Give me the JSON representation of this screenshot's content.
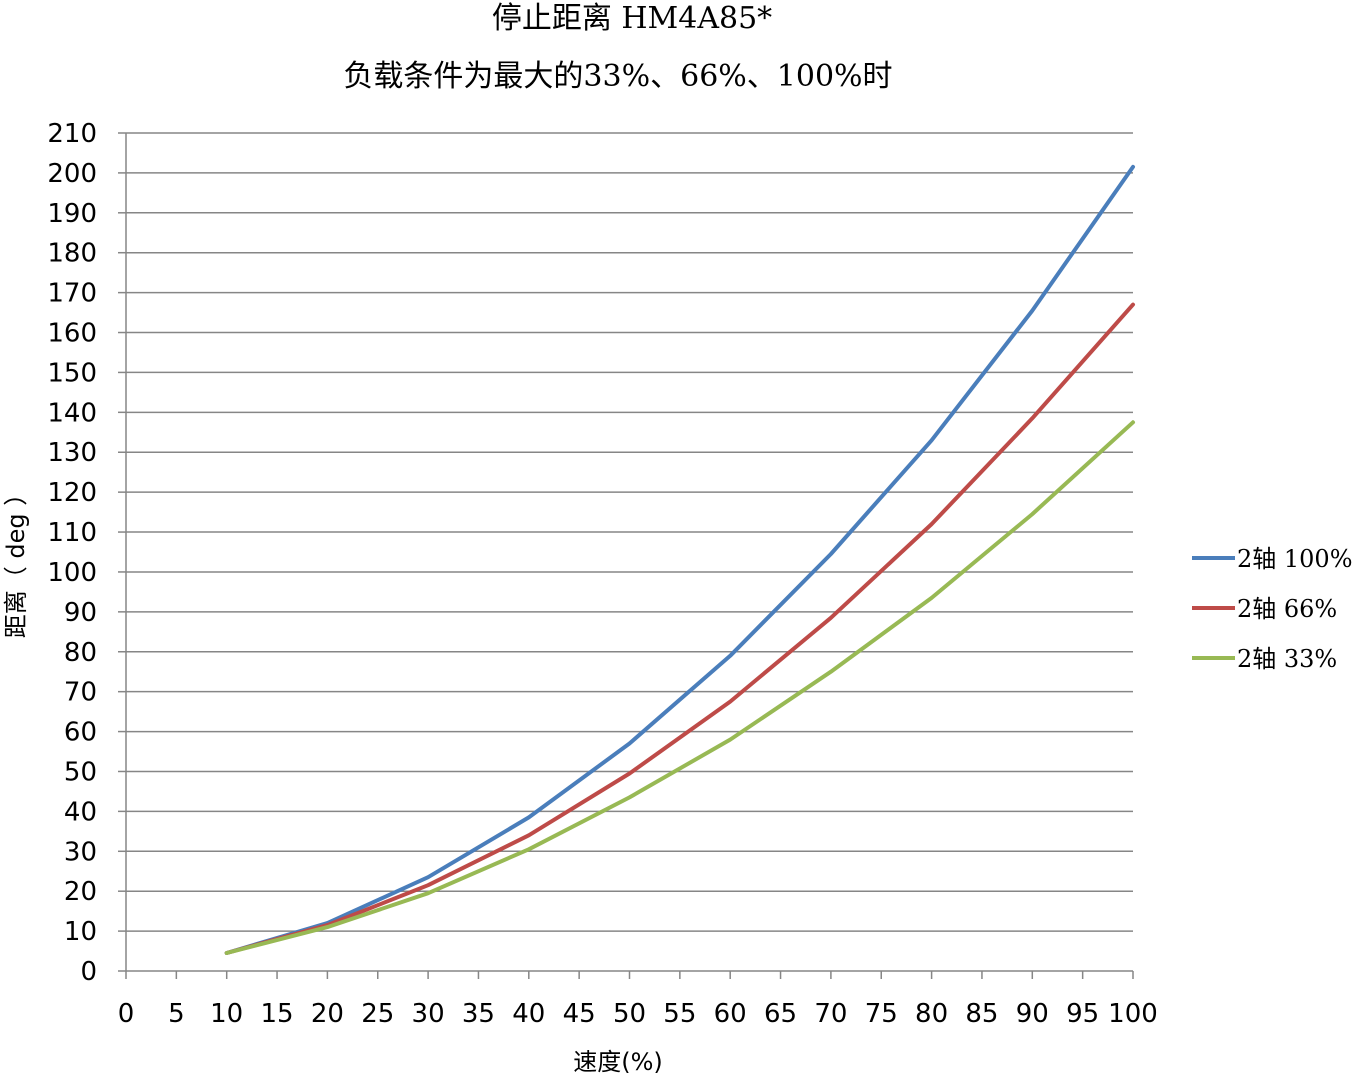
{
  "chart_data": {
    "type": "line",
    "title": "停止距离 HM4A85*",
    "subtitle": "负载条件为最大的33%、66%、100%时",
    "xlabel": "速度(%)",
    "ylabel": "距离（ deg ）",
    "xlim": [
      0,
      100
    ],
    "ylim": [
      0,
      210
    ],
    "x_ticks": [
      0,
      5,
      10,
      15,
      20,
      25,
      30,
      35,
      40,
      45,
      50,
      55,
      60,
      65,
      70,
      75,
      80,
      85,
      90,
      95,
      100
    ],
    "y_ticks": [
      0,
      10,
      20,
      30,
      40,
      50,
      60,
      70,
      80,
      90,
      100,
      110,
      120,
      130,
      140,
      150,
      160,
      170,
      180,
      190,
      200,
      210
    ],
    "grid": "horizontal",
    "legend_position": "right",
    "x": [
      10,
      20,
      30,
      40,
      50,
      60,
      70,
      80,
      90,
      100
    ],
    "series": [
      {
        "name": "2轴 100%",
        "color": "#4a7ebb",
        "values": [
          4.5,
          12,
          23.5,
          38.5,
          57,
          79,
          104.5,
          133,
          165.5,
          201.5
        ]
      },
      {
        "name": "2轴 66%",
        "color": "#be4b48",
        "values": [
          4.5,
          11.5,
          21.5,
          34,
          49.5,
          67.5,
          88.5,
          112,
          138.5,
          167
        ]
      },
      {
        "name": "2轴 33%",
        "color": "#98b954",
        "values": [
          4.5,
          11,
          19.5,
          30.5,
          43.5,
          58,
          75,
          93.5,
          114.5,
          137.5
        ]
      }
    ]
  }
}
